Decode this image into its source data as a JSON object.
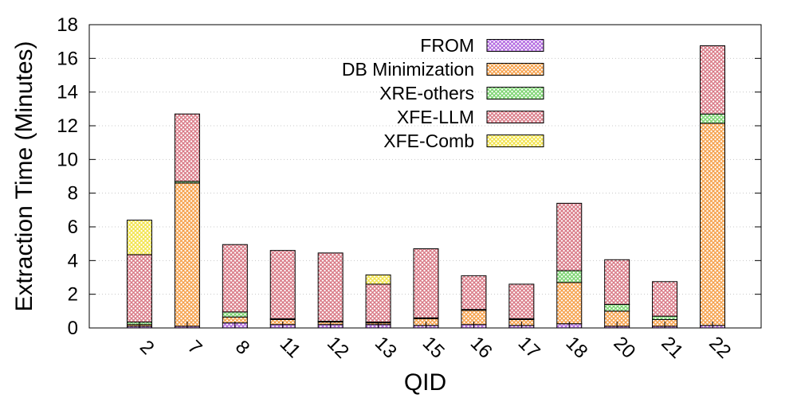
{
  "chart_data": {
    "type": "bar",
    "stacked": true,
    "xlabel": "QID",
    "ylabel": "Extraction Time (Minutes)",
    "ylim": [
      0,
      18
    ],
    "yticks": [
      0,
      2,
      4,
      6,
      8,
      10,
      12,
      14,
      16,
      18
    ],
    "grid": "horizontal-dotted",
    "legend_position": "top-center",
    "categories": [
      "2",
      "7",
      "8",
      "11",
      "12",
      "13",
      "15",
      "16",
      "17",
      "18",
      "20",
      "21",
      "22"
    ],
    "series": [
      {
        "name": "FROM",
        "color": "#b36be0",
        "values": [
          0.1,
          0.1,
          0.3,
          0.2,
          0.2,
          0.2,
          0.15,
          0.2,
          0.15,
          0.25,
          0.1,
          0.1,
          0.15
        ]
      },
      {
        "name": "DB Minimization",
        "color": "#f5a04a",
        "values": [
          0.1,
          8.5,
          0.35,
          0.3,
          0.15,
          0.1,
          0.4,
          0.85,
          0.35,
          2.45,
          0.9,
          0.4,
          12.0
        ]
      },
      {
        "name": "XRE-others",
        "color": "#7ad36e",
        "values": [
          0.15,
          0.1,
          0.3,
          0.05,
          0.05,
          0.05,
          0.05,
          0.05,
          0.05,
          0.7,
          0.4,
          0.2,
          0.55
        ]
      },
      {
        "name": "XFE-LLM",
        "color": "#d97a86",
        "values": [
          4.0,
          4.0,
          4.0,
          4.05,
          4.05,
          2.25,
          4.1,
          2.0,
          2.05,
          4.0,
          2.65,
          2.05,
          4.05
        ]
      },
      {
        "name": "XFE-Comb",
        "color": "#f2e34c",
        "values": [
          2.05,
          0,
          0,
          0,
          0,
          0.55,
          0,
          0,
          0,
          0,
          0,
          0,
          0
        ]
      }
    ]
  }
}
